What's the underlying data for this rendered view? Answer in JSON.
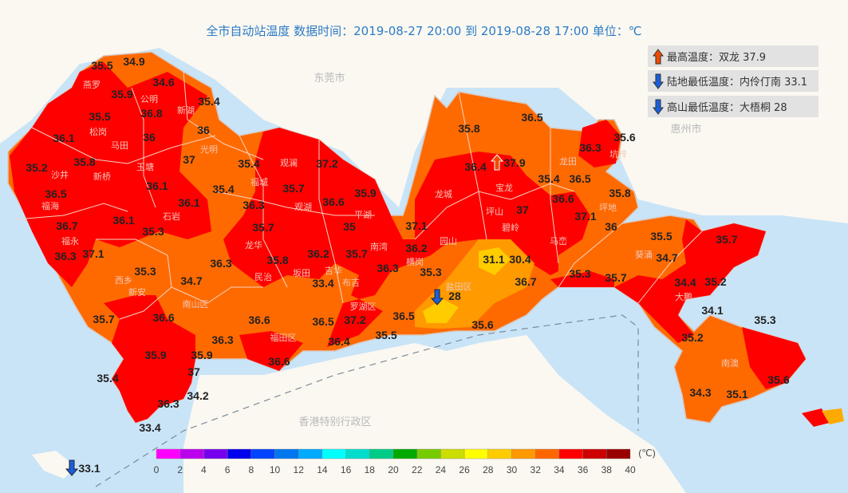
{
  "title": "全市自动站温度  数据时间：2019-08-27 20:00 到 2019-08-28 17:00  单位：℃",
  "legend": [
    {
      "icon": "arrow-up-icon",
      "text": "最高温度：双龙 37.9",
      "color": "#f04a00"
    },
    {
      "icon": "arrow-down-icon",
      "text": "陆地最低温度：内伶仃南 33.1",
      "color": "#1a5fd8"
    },
    {
      "icon": "arrow-down-icon",
      "text": "高山最低温度：大梧桐 28",
      "color": "#1a5fd8"
    }
  ],
  "cities": [
    "东莞市",
    "惠州市",
    "香港特别行政区"
  ],
  "places": [
    "燕罗",
    "公明",
    "新湖",
    "松岗",
    "马田",
    "沙井",
    "新桥",
    "玉塘",
    "福海",
    "石岩",
    "福永",
    "光明",
    "观澜",
    "福城",
    "观湖",
    "平湖",
    "龙华",
    "坂田",
    "吉华",
    "南湾",
    "布吉",
    "民治",
    "西乡",
    "新安",
    "南山区",
    "福田区",
    "罗湖区",
    "龙城",
    "宝龙",
    "园山",
    "横岗",
    "坪山",
    "碧岭",
    "马峦",
    "坑梓",
    "龙田",
    "坪地",
    "盐田区",
    "葵涌",
    "大鹏",
    "南澳"
  ],
  "stations": [
    "35.5",
    "34.9",
    "34.6",
    "35.9",
    "35.4",
    "35.5",
    "36.8",
    "36.1",
    "36",
    "36",
    "35.8",
    "35.2",
    "37",
    "35.4",
    "37.2",
    "36.1",
    "35.4",
    "35.7",
    "35.9",
    "36.5",
    "36.6",
    "36.3",
    "36.1",
    "36.1",
    "35",
    "36.7",
    "35.7",
    "37.1",
    "35.3",
    "37.1",
    "36.3",
    "36.2",
    "35.7",
    "36.2",
    "35.8",
    "36.3",
    "36.3",
    "35.3",
    "34.7",
    "35.3",
    "33.4",
    "36.5",
    "37.2",
    "36.6",
    "36.5",
    "35.5",
    "36.4",
    "28",
    "35.6",
    "36.3",
    "36.6",
    "35.9",
    "36.6",
    "35.7",
    "35.9",
    "37",
    "35.4",
    "34.2",
    "36.3",
    "33.4",
    "33.1",
    "35.8",
    "36.5",
    "36.4",
    "37.9",
    "35.6",
    "36.3",
    "35.4",
    "36.5",
    "35.8",
    "36.6",
    "37",
    "37.1",
    "36",
    "31.1",
    "30.4",
    "36.7",
    "35.3",
    "35.7",
    "35.5",
    "34.7",
    "35.7",
    "34.4",
    "35.2",
    "34.1",
    "35.3",
    "35.2",
    "35.6",
    "34.3",
    "35.1"
  ],
  "colorbar": {
    "unit": "(℃)",
    "ticks": [
      "0",
      "2",
      "4",
      "6",
      "8",
      "10",
      "12",
      "14",
      "16",
      "18",
      "20",
      "22",
      "24",
      "26",
      "28",
      "30",
      "32",
      "34",
      "36",
      "38",
      "40"
    ],
    "colors": [
      "#ff00ff",
      "#bb00ee",
      "#7700ee",
      "#0000ee",
      "#0044ff",
      "#0077ee",
      "#00aaff",
      "#00ffff",
      "#00ddcc",
      "#00cc88",
      "#00aa00",
      "#77cc00",
      "#ccdd00",
      "#ffff00",
      "#ffcc00",
      "#ff9900",
      "#ff6600",
      "#ff0000",
      "#cc0000",
      "#990000"
    ]
  },
  "markers": {
    "max_station": "37.9",
    "land_min_station": "33.1",
    "mountain_min_station": "28"
  }
}
